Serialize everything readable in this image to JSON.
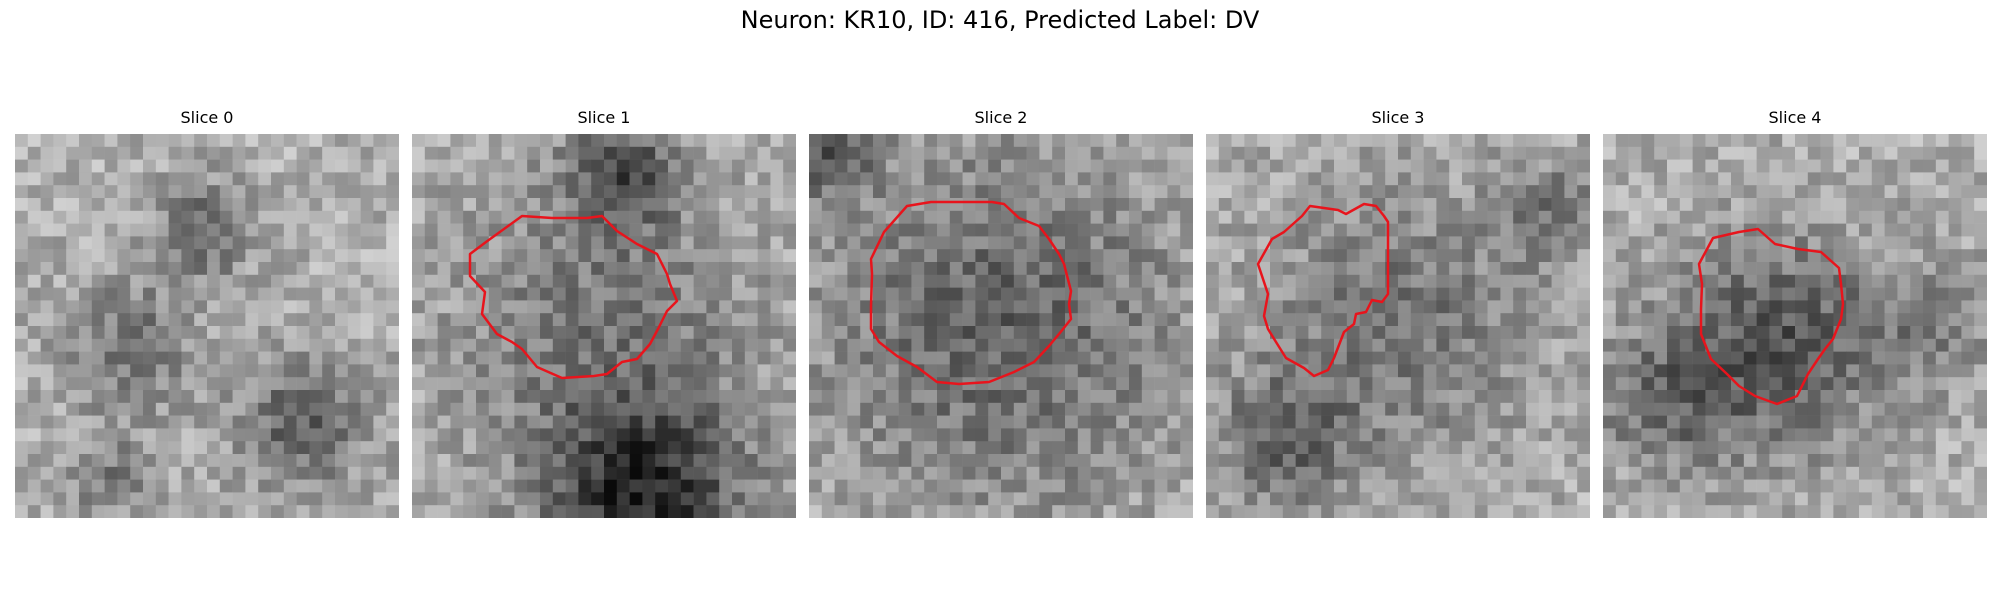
{
  "figure": {
    "title": "Neuron: KR10, ID: 416, Predicted Label: DV"
  },
  "panels": [
    {
      "title": "Slice 0",
      "has_contour": false
    },
    {
      "title": "Slice 1",
      "has_contour": true
    },
    {
      "title": "Slice 2",
      "has_contour": true
    },
    {
      "title": "Slice 3",
      "has_contour": true
    },
    {
      "title": "Slice 4",
      "has_contour": true
    }
  ],
  "colors": {
    "contour": "#e8141c",
    "colormap": "grayscale"
  }
}
